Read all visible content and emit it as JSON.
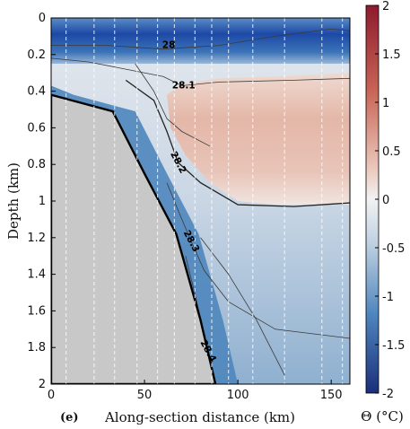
{
  "chart_data": {
    "type": "heatmap",
    "panel_label": "(e)",
    "xlabel": "Along-section distance (km)",
    "ylabel": "Depth (km)",
    "xlim": [
      0,
      160
    ],
    "ylim": [
      0,
      2
    ],
    "y_reversed": true,
    "x_ticks": [
      0,
      50,
      100,
      150
    ],
    "y_ticks": [
      0,
      0.2,
      0.4,
      0.6,
      0.8,
      1,
      1.2,
      1.4,
      1.6,
      1.8,
      2
    ],
    "colorbar": {
      "label": "Θ (°C)",
      "range": [
        -2,
        2
      ],
      "ticks": [
        2,
        1.5,
        1,
        0.5,
        0,
        -0.5,
        -1,
        -1.5,
        -2
      ],
      "low_color": "#1b2f7a",
      "mid_color": "#f2f2f2",
      "high_color": "#8e1b2e"
    },
    "station_distances_km": [
      8,
      23,
      34,
      46,
      57,
      66,
      77,
      86,
      95,
      108,
      125,
      145,
      156
    ],
    "bathymetry": [
      [
        0,
        0.42
      ],
      [
        33,
        0.51
      ],
      [
        50,
        0.85
      ],
      [
        67,
        1.18
      ],
      [
        80,
        1.65
      ],
      [
        88,
        2.0
      ]
    ],
    "contours": [
      {
        "label": "28",
        "label_at": [
          63,
          0.15
        ]
      },
      {
        "label": "28.1",
        "label_at": [
          71,
          0.37
        ]
      },
      {
        "label": "28.2",
        "label_at": [
          68,
          0.79
        ]
      },
      {
        "label": "28.3",
        "label_at": [
          75,
          1.22
        ]
      },
      {
        "label": "28.4",
        "label_at": [
          84,
          1.82
        ]
      }
    ]
  }
}
